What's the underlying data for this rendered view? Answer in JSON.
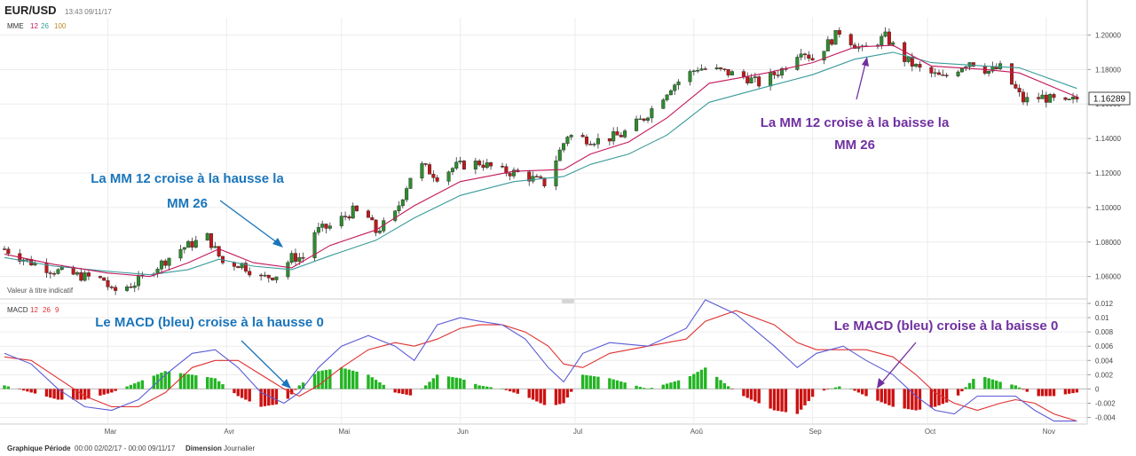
{
  "header": {
    "symbol": "EUR/USD",
    "timestamp": "13:43 09/11/17"
  },
  "top_panel": {
    "indicator": "MME",
    "params": [
      "12",
      "26",
      "100"
    ],
    "note": "Valeur à titre indicatif",
    "price_badge": "1.16289"
  },
  "bottom_panel": {
    "indicator": "MACD",
    "params": [
      "12",
      "26",
      "9"
    ]
  },
  "footer": {
    "period_label": "Graphique Période",
    "period_value": "00:00 02/02/17 - 00:00 09/11/17",
    "dimension_label": "Dimension",
    "dimension_value": "Journalier"
  },
  "annotations": {
    "cross_up_ma_l1": "La MM 12 croise à la hausse la",
    "cross_up_ma_l2": "MM 26",
    "cross_down_ma_l1": "La MM 12 croise à la baisse la",
    "cross_down_ma_l2": "MM 26",
    "macd_up": "Le MACD (bleu) croise à la hausse 0",
    "macd_down": "Le MACD (bleu) croise à la baisse 0"
  },
  "colors": {
    "up_candle": "#2e8b2e",
    "down_candle": "#c0181b",
    "ema12": "#c2185b",
    "ema26": "#3a9b9b",
    "macd": "#5b5bd6",
    "signal": "#e03030",
    "hist_pos": "#22b422",
    "hist_neg": "#cc1111",
    "annot_blue": "#1a75bb",
    "annot_purple": "#7030a0"
  },
  "chart_data": [
    {
      "type": "candlestick",
      "title": "EUR/USD",
      "x_tick_labels": [
        "Mar",
        "Avr",
        "Mai",
        "Jun",
        "Jul",
        "Aoû",
        "Sep",
        "Oct",
        "Nov"
      ],
      "y_tick_labels": [
        "1.06000",
        "1.08000",
        "1.10000",
        "1.12000",
        "1.14000",
        "1.16000",
        "1.18000",
        "1.20000"
      ],
      "ylim": [
        1.048,
        1.21
      ],
      "grid": true,
      "series": [
        {
          "name": "12",
          "type": "line",
          "role": "ema12"
        },
        {
          "name": "26",
          "type": "line",
          "role": "ema26"
        }
      ],
      "close_path": [
        [
          "02-02",
          1.076
        ],
        [
          "02-08",
          1.069
        ],
        [
          "02-14",
          1.064
        ],
        [
          "02-20",
          1.061
        ],
        [
          "02-28",
          1.058
        ],
        [
          "03-02",
          1.051
        ],
        [
          "03-08",
          1.056
        ],
        [
          "03-14",
          1.066
        ],
        [
          "03-20",
          1.076
        ],
        [
          "03-27",
          1.083
        ],
        [
          "03-31",
          1.068
        ],
        [
          "04-05",
          1.067
        ],
        [
          "04-10",
          1.059
        ],
        [
          "04-14",
          1.061
        ],
        [
          "04-18",
          1.071
        ],
        [
          "04-21",
          1.071
        ],
        [
          "04-24",
          1.086
        ],
        [
          "04-28",
          1.089
        ],
        [
          "05-04",
          1.098
        ],
        [
          "05-08",
          1.094
        ],
        [
          "05-10",
          1.086
        ],
        [
          "05-15",
          1.096
        ],
        [
          "05-19",
          1.118
        ],
        [
          "05-22",
          1.124
        ],
        [
          "05-26",
          1.118
        ],
        [
          "05-31",
          1.124
        ],
        [
          "06-06",
          1.126
        ],
        [
          "06-12",
          1.121
        ],
        [
          "06-16",
          1.12
        ],
        [
          "06-23",
          1.114
        ],
        [
          "06-29",
          1.142
        ],
        [
          "07-03",
          1.14
        ],
        [
          "07-07",
          1.139
        ],
        [
          "07-13",
          1.142
        ],
        [
          "07-19",
          1.152
        ],
        [
          "07-26",
          1.17
        ],
        [
          "08-02",
          1.181
        ],
        [
          "08-08",
          1.179
        ],
        [
          "08-14",
          1.176
        ],
        [
          "08-18",
          1.172
        ],
        [
          "08-24",
          1.18
        ],
        [
          "08-29",
          1.192
        ],
        [
          "09-01",
          1.186
        ],
        [
          "09-08",
          1.202
        ],
        [
          "09-14",
          1.191
        ],
        [
          "09-20",
          1.199
        ],
        [
          "09-25",
          1.186
        ],
        [
          "09-29",
          1.18
        ],
        [
          "10-05",
          1.175
        ],
        [
          "10-12",
          1.185
        ],
        [
          "10-17",
          1.179
        ],
        [
          "10-20",
          1.181
        ],
        [
          "10-26",
          1.162
        ],
        [
          "10-31",
          1.164
        ],
        [
          "11-06",
          1.16
        ],
        [
          "11-09",
          1.163
        ]
      ],
      "ema12": [
        [
          "02-02",
          1.073
        ],
        [
          "02-15",
          1.067
        ],
        [
          "03-01",
          1.062
        ],
        [
          "03-12",
          1.06
        ],
        [
          "03-22",
          1.068
        ],
        [
          "03-30",
          1.076
        ],
        [
          "04-08",
          1.068
        ],
        [
          "04-18",
          1.065
        ],
        [
          "04-28",
          1.078
        ],
        [
          "05-10",
          1.087
        ],
        [
          "05-20",
          1.101
        ],
        [
          "06-01",
          1.115
        ],
        [
          "06-15",
          1.121
        ],
        [
          "06-28",
          1.122
        ],
        [
          "07-05",
          1.131
        ],
        [
          "07-15",
          1.138
        ],
        [
          "07-25",
          1.152
        ],
        [
          "08-05",
          1.172
        ],
        [
          "08-20",
          1.178
        ],
        [
          "09-01",
          1.184
        ],
        [
          "09-12",
          1.193
        ],
        [
          "09-22",
          1.194
        ],
        [
          "10-02",
          1.182
        ],
        [
          "10-16",
          1.18
        ],
        [
          "10-25",
          1.178
        ],
        [
          "11-09",
          1.164
        ]
      ],
      "ema26": [
        [
          "02-02",
          1.071
        ],
        [
          "02-15",
          1.066
        ],
        [
          "03-01",
          1.063
        ],
        [
          "03-12",
          1.061
        ],
        [
          "03-22",
          1.064
        ],
        [
          "03-30",
          1.07
        ],
        [
          "04-08",
          1.066
        ],
        [
          "04-18",
          1.064
        ],
        [
          "04-28",
          1.072
        ],
        [
          "05-10",
          1.081
        ],
        [
          "05-20",
          1.094
        ],
        [
          "06-01",
          1.107
        ],
        [
          "06-15",
          1.115
        ],
        [
          "06-28",
          1.118
        ],
        [
          "07-05",
          1.125
        ],
        [
          "07-15",
          1.131
        ],
        [
          "07-25",
          1.142
        ],
        [
          "08-05",
          1.161
        ],
        [
          "08-20",
          1.17
        ],
        [
          "09-01",
          1.177
        ],
        [
          "09-12",
          1.186
        ],
        [
          "09-22",
          1.19
        ],
        [
          "10-02",
          1.184
        ],
        [
          "10-16",
          1.182
        ],
        [
          "10-25",
          1.181
        ],
        [
          "11-09",
          1.169
        ]
      ],
      "last_price": 1.16289
    },
    {
      "type": "line",
      "title": "MACD",
      "y_tick_labels": [
        "-0.004",
        "-0.002",
        "0",
        "0.002",
        "0.004",
        "0.006",
        "0.008",
        "0.01",
        "0.012"
      ],
      "ylim": [
        -0.0048,
        0.0125
      ],
      "grid": true,
      "series": [
        {
          "name": "12",
          "role": "macd",
          "values": [
            [
              "02-02",
              0.005
            ],
            [
              "02-09",
              0.0035
            ],
            [
              "02-16",
              0.0
            ],
            [
              "02-23",
              -0.0025
            ],
            [
              "03-02",
              -0.003
            ],
            [
              "03-09",
              -0.0015
            ],
            [
              "03-16",
              0.002
            ],
            [
              "03-23",
              0.005
            ],
            [
              "03-29",
              0.0055
            ],
            [
              "04-04",
              0.003
            ],
            [
              "04-10",
              -0.0005
            ],
            [
              "04-16",
              -0.002
            ],
            [
              "04-20",
              -0.0005
            ],
            [
              "04-25",
              0.003
            ],
            [
              "05-01",
              0.006
            ],
            [
              "05-08",
              0.0075
            ],
            [
              "05-15",
              0.006
            ],
            [
              "05-20",
              0.004
            ],
            [
              "05-26",
              0.009
            ],
            [
              "06-01",
              0.01
            ],
            [
              "06-06",
              0.0095
            ],
            [
              "06-12",
              0.009
            ],
            [
              "06-18",
              0.007
            ],
            [
              "06-24",
              0.003
            ],
            [
              "06-28",
              0.001
            ],
            [
              "07-03",
              0.005
            ],
            [
              "07-10",
              0.0065
            ],
            [
              "07-20",
              0.006
            ],
            [
              "07-30",
              0.0085
            ],
            [
              "08-04",
              0.0125
            ],
            [
              "08-12",
              0.0105
            ],
            [
              "08-22",
              0.006
            ],
            [
              "08-28",
              0.003
            ],
            [
              "09-02",
              0.005
            ],
            [
              "09-09",
              0.006
            ],
            [
              "09-15",
              0.004
            ],
            [
              "09-22",
              0.002
            ],
            [
              "09-28",
              -0.001
            ],
            [
              "10-03",
              -0.003
            ],
            [
              "10-08",
              -0.0035
            ],
            [
              "10-14",
              -0.001
            ],
            [
              "10-20",
              -0.001
            ],
            [
              "10-24",
              -0.001
            ],
            [
              "10-29",
              -0.003
            ],
            [
              "11-03",
              -0.0045
            ],
            [
              "11-09",
              -0.0045
            ]
          ]
        },
        {
          "name": "26",
          "role": "signal",
          "values": [
            [
              "02-02",
              0.0045
            ],
            [
              "02-09",
              0.004
            ],
            [
              "02-16",
              0.0015
            ],
            [
              "02-23",
              -0.001
            ],
            [
              "03-02",
              -0.0025
            ],
            [
              "03-09",
              -0.0025
            ],
            [
              "03-16",
              -0.0005
            ],
            [
              "03-23",
              0.003
            ],
            [
              "03-29",
              0.004
            ],
            [
              "04-04",
              0.004
            ],
            [
              "04-10",
              0.002
            ],
            [
              "04-16",
              0.0
            ],
            [
              "04-20",
              -0.001
            ],
            [
              "04-25",
              0.0005
            ],
            [
              "05-01",
              0.003
            ],
            [
              "05-08",
              0.0055
            ],
            [
              "05-15",
              0.0065
            ],
            [
              "05-20",
              0.006
            ],
            [
              "05-26",
              0.007
            ],
            [
              "06-01",
              0.0085
            ],
            [
              "06-06",
              0.009
            ],
            [
              "06-12",
              0.009
            ],
            [
              "06-18",
              0.008
            ],
            [
              "06-24",
              0.006
            ],
            [
              "06-28",
              0.0035
            ],
            [
              "07-03",
              0.003
            ],
            [
              "07-10",
              0.005
            ],
            [
              "07-20",
              0.006
            ],
            [
              "07-30",
              0.007
            ],
            [
              "08-04",
              0.0095
            ],
            [
              "08-12",
              0.011
            ],
            [
              "08-22",
              0.009
            ],
            [
              "08-28",
              0.0065
            ],
            [
              "09-02",
              0.0055
            ],
            [
              "09-09",
              0.0055
            ],
            [
              "09-15",
              0.0055
            ],
            [
              "09-22",
              0.0045
            ],
            [
              "09-28",
              0.002
            ],
            [
              "10-03",
              -0.0005
            ],
            [
              "10-08",
              -0.002
            ],
            [
              "10-14",
              -0.003
            ],
            [
              "10-20",
              -0.002
            ],
            [
              "10-24",
              -0.0015
            ],
            [
              "10-29",
              -0.002
            ],
            [
              "11-03",
              -0.0035
            ],
            [
              "11-09",
              -0.0045
            ]
          ]
        },
        {
          "name": "9",
          "role": "histogram",
          "type": "bar",
          "values": [
            [
              "02-02",
              0.0005
            ],
            [
              "02-09",
              -0.0005
            ],
            [
              "02-16",
              -0.0015
            ],
            [
              "02-23",
              -0.0015
            ],
            [
              "03-02",
              -0.0005
            ],
            [
              "03-09",
              0.001
            ],
            [
              "03-16",
              0.0025
            ],
            [
              "03-23",
              0.002
            ],
            [
              "03-29",
              0.0015
            ],
            [
              "04-04",
              -0.001
            ],
            [
              "04-10",
              -0.0025
            ],
            [
              "04-16",
              -0.002
            ],
            [
              "04-20",
              0.0005
            ],
            [
              "04-25",
              0.0025
            ],
            [
              "05-01",
              0.003
            ],
            [
              "05-08",
              0.002
            ],
            [
              "05-15",
              -0.0005
            ],
            [
              "05-20",
              -0.001
            ],
            [
              "05-26",
              0.002
            ],
            [
              "06-01",
              0.0015
            ],
            [
              "06-06",
              0.0005
            ],
            [
              "06-12",
              0.0
            ],
            [
              "06-18",
              -0.001
            ],
            [
              "06-24",
              -0.0025
            ],
            [
              "06-28",
              -0.002
            ],
            [
              "07-03",
              0.002
            ],
            [
              "07-10",
              0.0015
            ],
            [
              "07-20",
              0.0
            ],
            [
              "07-30",
              0.0015
            ],
            [
              "08-04",
              0.003
            ],
            [
              "08-12",
              -0.0005
            ],
            [
              "08-22",
              -0.003
            ],
            [
              "08-28",
              -0.0035
            ],
            [
              "09-02",
              -0.0005
            ],
            [
              "09-09",
              0.0005
            ],
            [
              "09-15",
              -0.001
            ],
            [
              "09-22",
              -0.0025
            ],
            [
              "09-28",
              -0.003
            ],
            [
              "10-03",
              -0.0025
            ],
            [
              "10-08",
              -0.0015
            ],
            [
              "10-14",
              0.002
            ],
            [
              "10-20",
              0.001
            ],
            [
              "10-24",
              0.0005
            ],
            [
              "10-29",
              -0.001
            ],
            [
              "11-03",
              -0.001
            ],
            [
              "11-09",
              -0.0005
            ]
          ]
        }
      ]
    }
  ]
}
